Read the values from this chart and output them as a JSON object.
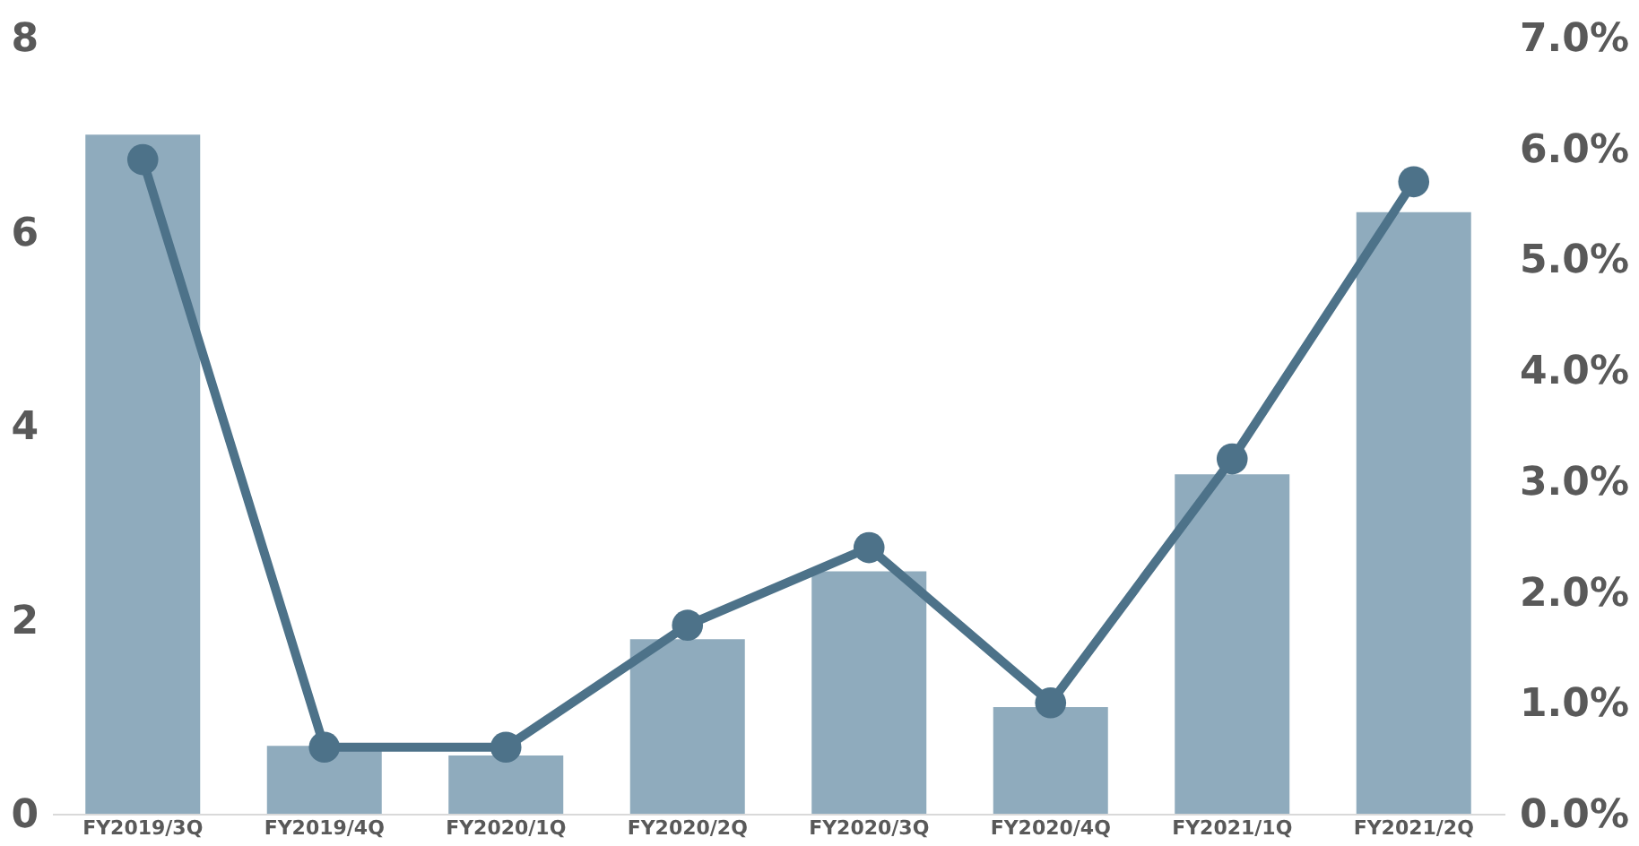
{
  "chart_data": {
    "type": "bar",
    "categories": [
      "FY2019/3Q",
      "FY2019/4Q",
      "FY2020/1Q",
      "FY2020/2Q",
      "FY2020/3Q",
      "FY2020/4Q",
      "FY2021/1Q",
      "FY2021/2Q"
    ],
    "series": [
      {
        "color": "#8fabbd",
        "values": [
          7.0,
          0.7,
          0.6,
          1.8,
          2.5,
          1.1,
          3.5,
          6.2
        ]
      },
      {
        "type": "line",
        "axis": "y2",
        "color": "#4d7289",
        "values": [
          5.9,
          0.6,
          0.6,
          1.7,
          2.4,
          1.0,
          3.2,
          5.7
        ]
      }
    ],
    "ylim": [
      0,
      8
    ],
    "yticks": [
      0,
      2,
      4,
      6,
      8
    ],
    "y2lim": [
      0,
      7
    ],
    "y2ticks": [
      {
        "value": 0,
        "label": "0.0%"
      },
      {
        "value": 1,
        "label": "1.0%"
      },
      {
        "value": 2,
        "label": "2.0%"
      },
      {
        "value": 3,
        "label": "3.0%"
      },
      {
        "value": 4,
        "label": "4.0%"
      },
      {
        "value": 5,
        "label": "5.0%"
      },
      {
        "value": 6,
        "label": "6.0%"
      },
      {
        "value": 7,
        "label": "7.0%"
      }
    ],
    "marker": "circle",
    "line_style": "solid",
    "grid": false
  }
}
